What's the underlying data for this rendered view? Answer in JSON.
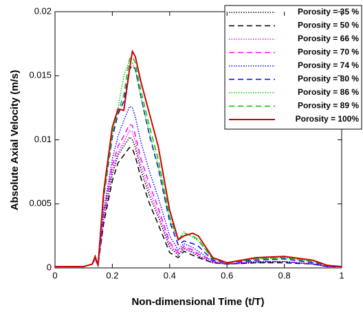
{
  "chart_data": {
    "type": "line",
    "xlabel": "Non-dimensional Time (t/T)",
    "ylabel": "Absolute Axial Velocity (m/s)",
    "xlim": [
      0,
      1
    ],
    "ylim": [
      0,
      0.02
    ],
    "xticks": [
      0,
      0.2,
      0.4,
      0.6,
      0.8,
      1
    ],
    "yticks": [
      0,
      0.005,
      0.01,
      0.015,
      0.02
    ],
    "legend": "upper right",
    "x": [
      0,
      0.05,
      0.1,
      0.13,
      0.14,
      0.15,
      0.17,
      0.2,
      0.22,
      0.24,
      0.26,
      0.27,
      0.28,
      0.3,
      0.33,
      0.36,
      0.4,
      0.43,
      0.45,
      0.48,
      0.5,
      0.55,
      0.6,
      0.7,
      0.8,
      0.9,
      0.95,
      1
    ],
    "series": [
      {
        "name": "Porosity = 35 %",
        "color": "#000000",
        "style": "dotted",
        "values": [
          0.0001,
          0.0001,
          0.0001,
          0.0003,
          0.0007,
          0.0002,
          0.0038,
          0.0073,
          0.0088,
          0.0095,
          0.0102,
          0.01,
          0.0094,
          0.0076,
          0.0056,
          0.004,
          0.0016,
          0.001,
          0.0015,
          0.0012,
          0.0009,
          0.0004,
          0.0003,
          0.0004,
          0.0005,
          0.0003,
          0.0001,
          0.0001
        ]
      },
      {
        "name": "Porosity = 50 %",
        "color": "#000000",
        "style": "dashed",
        "values": [
          0.0001,
          0.0001,
          0.0001,
          0.0003,
          0.0007,
          0.0002,
          0.0035,
          0.0068,
          0.0082,
          0.0088,
          0.0094,
          0.0093,
          0.0087,
          0.007,
          0.005,
          0.0034,
          0.0012,
          0.0008,
          0.0013,
          0.001,
          0.0008,
          0.0004,
          0.0003,
          0.0004,
          0.0004,
          0.0003,
          0.0001,
          0.0001
        ]
      },
      {
        "name": "Porosity = 66 %",
        "color": "#ff00ff",
        "style": "dotted",
        "values": [
          0.0001,
          0.0001,
          0.0001,
          0.0003,
          0.0007,
          0.0002,
          0.004,
          0.0077,
          0.009,
          0.0098,
          0.0107,
          0.0106,
          0.0099,
          0.008,
          0.006,
          0.0043,
          0.0018,
          0.0011,
          0.0016,
          0.0013,
          0.001,
          0.0004,
          0.0003,
          0.0005,
          0.0005,
          0.0003,
          0.0001,
          0.0001
        ]
      },
      {
        "name": "Porosity = 70 %",
        "color": "#ff00ff",
        "style": "dashed",
        "values": [
          0.0001,
          0.0001,
          0.0001,
          0.0003,
          0.0007,
          0.0002,
          0.0042,
          0.008,
          0.0095,
          0.0103,
          0.0112,
          0.0111,
          0.0104,
          0.0085,
          0.0065,
          0.0047,
          0.002,
          0.0012,
          0.0017,
          0.0014,
          0.0011,
          0.0005,
          0.0003,
          0.0005,
          0.0005,
          0.0003,
          0.0001,
          0.0001
        ]
      },
      {
        "name": "Porosity = 74 %",
        "color": "#0000ff",
        "style": "dotted",
        "values": [
          0.0001,
          0.0001,
          0.0001,
          0.0003,
          0.0007,
          0.0002,
          0.0045,
          0.0085,
          0.0103,
          0.0115,
          0.0126,
          0.0125,
          0.0118,
          0.0098,
          0.0075,
          0.0055,
          0.0025,
          0.0014,
          0.0019,
          0.0016,
          0.0013,
          0.0005,
          0.0003,
          0.0005,
          0.0005,
          0.0003,
          0.0001,
          0.0001
        ]
      },
      {
        "name": "Porosity = 80 %",
        "color": "#0000ff",
        "style": "dashed",
        "values": [
          0.0001,
          0.0001,
          0.0001,
          0.0003,
          0.0008,
          0.0002,
          0.0055,
          0.0102,
          0.012,
          0.013,
          0.0155,
          0.0158,
          0.0155,
          0.0133,
          0.0103,
          0.0078,
          0.0036,
          0.0018,
          0.0021,
          0.0019,
          0.0017,
          0.0006,
          0.0004,
          0.0006,
          0.0007,
          0.0004,
          0.0002,
          0.0001
        ]
      },
      {
        "name": "Porosity = 86 %",
        "color": "#00c000",
        "style": "dotted",
        "values": [
          0.0001,
          0.0001,
          0.0001,
          0.0003,
          0.0008,
          0.0002,
          0.0055,
          0.0105,
          0.0125,
          0.015,
          0.0162,
          0.016,
          0.0155,
          0.0133,
          0.0105,
          0.008,
          0.0038,
          0.0022,
          0.0028,
          0.0024,
          0.0021,
          0.0007,
          0.0004,
          0.0007,
          0.0008,
          0.0005,
          0.0002,
          0.0001
        ]
      },
      {
        "name": "Porosity = 89 %",
        "color": "#00c000",
        "style": "dashed",
        "values": [
          0.0001,
          0.0001,
          0.0001,
          0.0003,
          0.0008,
          0.0002,
          0.0055,
          0.0105,
          0.0122,
          0.0135,
          0.0163,
          0.0165,
          0.016,
          0.0138,
          0.011,
          0.0085,
          0.004,
          0.0022,
          0.0027,
          0.0025,
          0.0022,
          0.0007,
          0.0004,
          0.0007,
          0.0008,
          0.0005,
          0.0002,
          0.0001
        ]
      },
      {
        "name": "Porosity = 100%",
        "color": "#d00000",
        "style": "solid",
        "values": [
          0.0001,
          0.0001,
          0.0001,
          0.0003,
          0.0009,
          0.0002,
          0.006,
          0.011,
          0.0124,
          0.0123,
          0.0155,
          0.0169,
          0.0165,
          0.0145,
          0.012,
          0.0095,
          0.0045,
          0.0022,
          0.0025,
          0.0027,
          0.0025,
          0.0008,
          0.0004,
          0.0008,
          0.0009,
          0.0006,
          0.0002,
          0.0001
        ]
      }
    ]
  }
}
